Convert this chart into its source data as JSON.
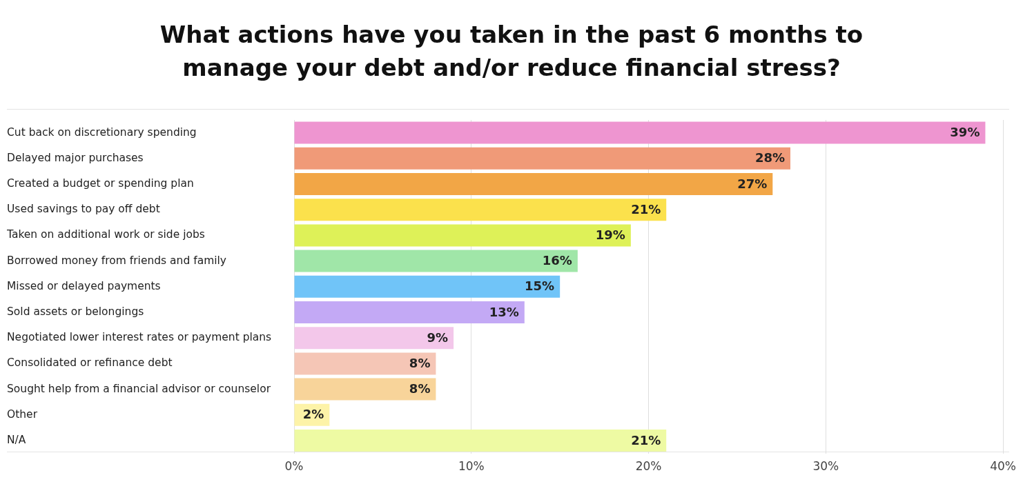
{
  "chart_data": {
    "type": "bar",
    "orientation": "horizontal",
    "title": "What actions have you taken in the past 6 months to manage your debt and/or reduce financial stress?",
    "categories": [
      "Cut back on discretionary spending",
      "Delayed major purchases",
      "Created a budget or spending plan",
      "Used savings to pay off debt",
      "Taken on additional work or side jobs",
      "Borrowed money from friends and family",
      "Missed or delayed payments",
      "Sold assets or belongings",
      "Negotiated lower interest rates or payment plans",
      "Consolidated or refinance debt",
      "Sought help from a financial advisor or counselor",
      "Other",
      "N/A"
    ],
    "values": [
      39,
      28,
      27,
      21,
      19,
      16,
      15,
      13,
      9,
      8,
      8,
      2,
      21
    ],
    "colors": [
      "#ee95d0",
      "#f09a78",
      "#f2a646",
      "#fbe14c",
      "#def158",
      "#a0e6a8",
      "#70c4f8",
      "#c3a9f5",
      "#f3c7ea",
      "#f5c6b6",
      "#f8d49a",
      "#fdf3a8",
      "#eefaa3"
    ],
    "xlim": [
      0,
      40
    ],
    "xticks": [
      {
        "value": 0,
        "label": "0%"
      },
      {
        "value": 10,
        "label": "10%"
      },
      {
        "value": 20,
        "label": "20%"
      },
      {
        "value": 30,
        "label": "30%"
      },
      {
        "value": 40,
        "label": "40%"
      }
    ],
    "value_labels": [
      "39%",
      "28%",
      "27%",
      "21%",
      "19%",
      "16%",
      "15%",
      "13%",
      "9%",
      "8%",
      "8%",
      "2%",
      "21%"
    ],
    "grid": "x",
    "legend": false
  }
}
